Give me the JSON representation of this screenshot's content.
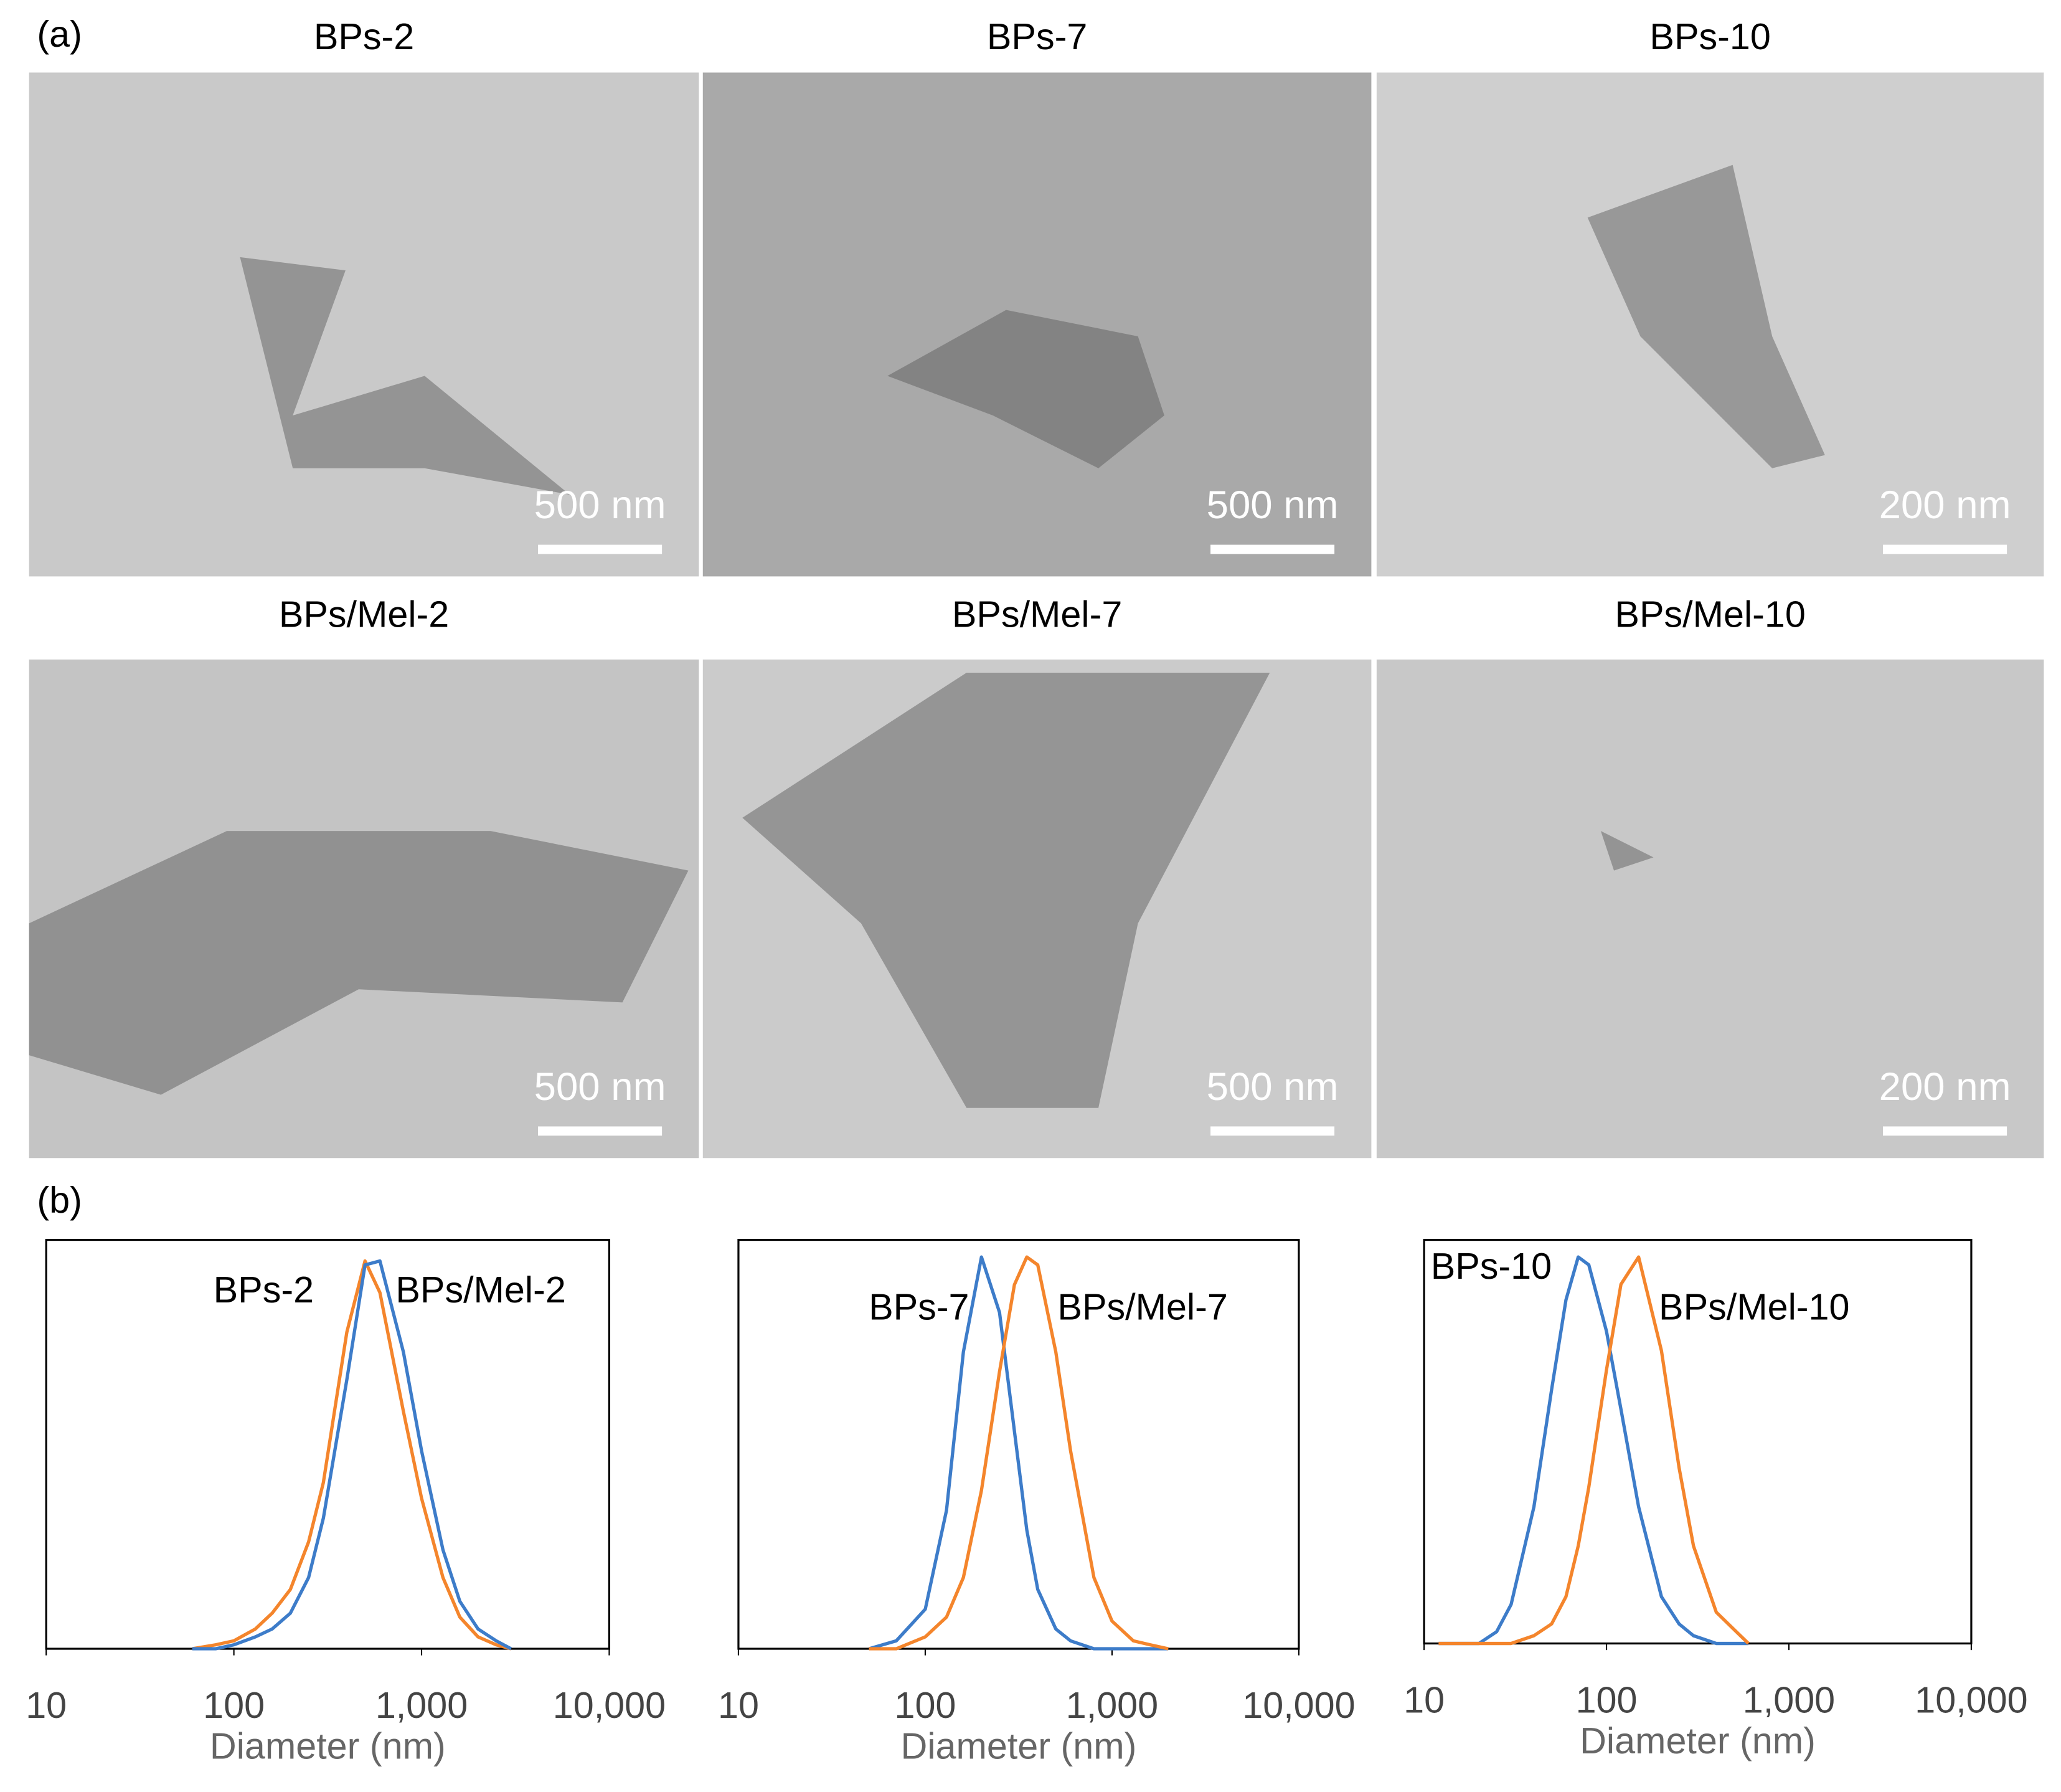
{
  "figure": {
    "panel_a": "(a)",
    "panel_b": "(b)",
    "images": [
      {
        "title": "BPs-2",
        "scale_bar": "500 nm"
      },
      {
        "title": "BPs-7",
        "scale_bar": "500 nm"
      },
      {
        "title": "BPs-10",
        "scale_bar": "200 nm"
      },
      {
        "title": "BPs/Mel-2",
        "scale_bar": "500 nm"
      },
      {
        "title": "BPs/Mel-7",
        "scale_bar": "500 nm"
      },
      {
        "title": "BPs/Mel-10",
        "scale_bar": "200 nm"
      }
    ]
  },
  "chart_data": [
    {
      "type": "line",
      "xlabel": "Diameter (nm)",
      "log_x": true,
      "xlim": [
        10,
        10000
      ],
      "ylim": [
        0,
        100
      ],
      "xticks": [
        10,
        100,
        {
          "value": 1000,
          "label": "1,000"
        },
        {
          "value": 10000,
          "label": "10,000"
        }
      ],
      "x": [
        60,
        80,
        100,
        130,
        160,
        200,
        250,
        300,
        400,
        500,
        600,
        800,
        1000,
        1300,
        1600,
        2000,
        2500,
        3000
      ],
      "series": [
        {
          "name": "BPs-2",
          "color": "#f4852c",
          "values": [
            0,
            1,
            2,
            5,
            9,
            15,
            27,
            42,
            80,
            98,
            90,
            60,
            38,
            18,
            8,
            3,
            1,
            0
          ]
        },
        {
          "name": "BPs/Mel-2",
          "color": "#3d7cc9",
          "values": [
            0,
            0,
            1,
            3,
            5,
            9,
            18,
            33,
            68,
            97,
            98,
            75,
            50,
            25,
            12,
            5,
            2,
            0
          ]
        }
      ]
    },
    {
      "type": "line",
      "xlabel": "Diameter (nm)",
      "log_x": true,
      "xlim": [
        10,
        10000
      ],
      "ylim": [
        0,
        100
      ],
      "xticks": [
        10,
        100,
        {
          "value": 1000,
          "label": "1,000"
        },
        {
          "value": 10000,
          "label": "10,000"
        }
      ],
      "x": [
        50,
        70,
        100,
        130,
        160,
        200,
        250,
        300,
        350,
        400,
        500,
        600,
        800,
        1000,
        1300,
        1600,
        2000
      ],
      "series": [
        {
          "name": "BPs-7",
          "color": "#3d7cc9",
          "values": [
            0,
            2,
            10,
            35,
            75,
            99,
            85,
            55,
            30,
            15,
            5,
            2,
            0,
            0,
            0,
            0,
            0
          ]
        },
        {
          "name": "BPs/Mel-7",
          "color": "#f4852c",
          "values": [
            0,
            0,
            3,
            8,
            18,
            40,
            70,
            92,
            99,
            97,
            75,
            50,
            18,
            7,
            2,
            1,
            0
          ]
        }
      ]
    },
    {
      "type": "line",
      "xlabel": "Diameter (nm)",
      "log_x": true,
      "xlim": [
        10,
        10000
      ],
      "ylim": [
        0,
        100
      ],
      "xticks": [
        10,
        100,
        {
          "value": 1000,
          "label": "1,000"
        },
        {
          "value": 10000,
          "label": "10,000"
        }
      ],
      "x": [
        12,
        20,
        25,
        30,
        40,
        50,
        60,
        70,
        80,
        100,
        120,
        150,
        200,
        250,
        300,
        400,
        600
      ],
      "series": [
        {
          "name": "BPs-10",
          "color": "#3d7cc9",
          "values": [
            0,
            0,
            3,
            10,
            35,
            65,
            88,
            99,
            97,
            80,
            60,
            35,
            12,
            5,
            2,
            0,
            0
          ]
        },
        {
          "name": "BPs/Mel-10",
          "color": "#f4852c",
          "values": [
            0,
            0,
            0,
            0,
            2,
            5,
            12,
            25,
            40,
            70,
            92,
            99,
            75,
            45,
            25,
            8,
            0
          ]
        }
      ]
    }
  ]
}
